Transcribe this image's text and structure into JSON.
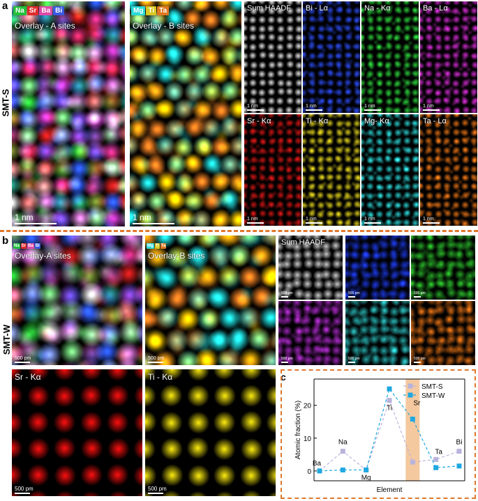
{
  "panel_a": {
    "letter": "a",
    "row_label": "SMT-S",
    "overlay_a": {
      "legend": [
        "Na",
        "Sr",
        "Ba",
        "Bi"
      ],
      "legend_colors": [
        "#22c03a",
        "#e02a2a",
        "#e04aa8",
        "#3a5ae0"
      ],
      "label": "Overlay - A sites",
      "scale": "1 nm"
    },
    "overlay_b": {
      "legend": [
        "Mg",
        "Ti",
        "Ta"
      ],
      "legend_colors": [
        "#28d8d8",
        "#d8c820",
        "#e07820"
      ],
      "label": "Overlay - B sites",
      "scale": "1 nm"
    },
    "maps": [
      {
        "label": "Sum HAADF",
        "scale": "1 nm",
        "color": "#ffffff"
      },
      {
        "label": "Bi - Lα",
        "scale": "1 nm",
        "color": "#3050ff"
      },
      {
        "label": "Na - Kα",
        "scale": "1 nm",
        "color": "#30e040"
      },
      {
        "label": "Ba - Lα",
        "scale": "1 nm",
        "color": "#e030e0"
      },
      {
        "label": "Sr - Kα",
        "scale": "1 nm",
        "color": "#e01818"
      },
      {
        "label": "Ti - Kα",
        "scale": "1 nm",
        "color": "#f0e020"
      },
      {
        "label": "Mg- Kα",
        "scale": "1 nm",
        "color": "#30e0e0"
      },
      {
        "label": "Ta - Lα",
        "scale": "1 nm",
        "color": "#f07818"
      }
    ]
  },
  "panel_b": {
    "letter": "b",
    "row_label": "SMT-W",
    "overlay_a": {
      "legend": [
        "Na",
        "Sr",
        "Ba",
        "Bi"
      ],
      "legend_colors": [
        "#22c03a",
        "#e02a2a",
        "#e04aa8",
        "#3a5ae0"
      ],
      "label": "Overlay-A sites",
      "scale": "500 pm"
    },
    "overlay_b": {
      "legend": [
        "Mg",
        "Ti",
        "Ta"
      ],
      "legend_colors": [
        "#28d8d8",
        "#d8c820",
        "#e07820"
      ],
      "label": "Overlay-B sites",
      "scale": "500 pm"
    },
    "maps": [
      {
        "label": "Sum HAADF",
        "scale": "500 pm",
        "color": "#ffffff"
      },
      {
        "label": "",
        "scale": "500 pm",
        "color": "#2040ff"
      },
      {
        "label": "",
        "scale": "500 pm",
        "color": "#30d030"
      },
      {
        "label": "",
        "scale": "500 pm",
        "color": "#c030e0"
      },
      {
        "label": "",
        "scale": "500 pm",
        "color": "#30d0d0"
      },
      {
        "label": "",
        "scale": "500 pm",
        "color": "#f07818"
      }
    ],
    "large_maps": [
      {
        "label": "Sr - Kα",
        "scale": "500 pm",
        "color": "#ff1010"
      },
      {
        "label": "Ti - Kα",
        "scale": "500 pm",
        "color": "#ffee10"
      }
    ]
  },
  "chart_data": {
    "letter": "c",
    "type": "line",
    "title": "",
    "xlabel": "Element",
    "ylabel": "Atomic fraction (%)",
    "ylim": [
      -3,
      28
    ],
    "yticks": [
      0,
      10,
      20
    ],
    "categories": [
      "Ba",
      "Na",
      "Mg",
      "Ti",
      "Sr",
      "Ta",
      "Bi"
    ],
    "series": [
      {
        "name": "SMT-S",
        "color": "#b9b3dc",
        "values": [
          0,
          6,
          0.3,
          21.5,
          2.7,
          3.5,
          6
        ]
      },
      {
        "name": "SMT-W",
        "color": "#1fa8e0",
        "values": [
          0,
          0.3,
          0.3,
          25,
          15.8,
          1,
          1.5
        ]
      }
    ],
    "point_labels": [
      "Ba",
      "Na",
      "Mg",
      "Ti",
      "Sr",
      "Ta",
      "Bi"
    ],
    "highlight_category": "Sr",
    "highlight_color": "#f5c9a0",
    "legend_position": "top-right"
  }
}
